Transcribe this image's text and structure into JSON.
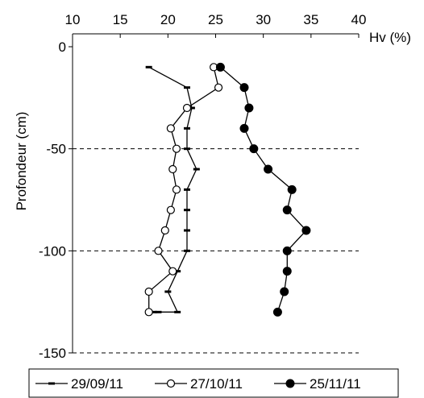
{
  "chart_data": {
    "type": "line",
    "xlabel": "Hv (%)",
    "ylabel": "Profondeur (cm)",
    "x_ticks": [
      "10",
      "15",
      "20",
      "25",
      "30",
      "35",
      "40"
    ],
    "y_ticks": [
      "0",
      "-50",
      "-100",
      "-150"
    ],
    "xlim": [
      10,
      40
    ],
    "ylim": [
      -150,
      0
    ],
    "x_axis_position": "top",
    "grid": "horizontal dashed at -50, -100, -150",
    "legend_position": "bottom",
    "series": [
      {
        "name": "29/09/11",
        "marker": "dash",
        "color": "#000000",
        "x": [
          18.0,
          22.0,
          22.5,
          22.0,
          22.0,
          23.0,
          22.0,
          22.0,
          22.0,
          22.0,
          21.0,
          20.0,
          21.0,
          18.5,
          19.0
        ],
        "y": [
          -10,
          -20,
          -30,
          -40,
          -50,
          -60,
          -70,
          -80,
          -90,
          -100,
          -110,
          -120,
          -130,
          -130,
          -130
        ]
      },
      {
        "name": "27/10/11",
        "marker": "circle-open",
        "color": "#000000",
        "x": [
          24.8,
          25.3,
          22.0,
          20.3,
          20.9,
          20.5,
          20.9,
          20.3,
          19.7,
          19.0,
          20.5,
          18.0,
          18.0
        ],
        "y": [
          -10,
          -20,
          -30,
          -40,
          -50,
          -60,
          -70,
          -80,
          -90,
          -100,
          -110,
          -120,
          -130
        ]
      },
      {
        "name": "25/11/11",
        "marker": "circle-filled",
        "color": "#000000",
        "x": [
          25.5,
          28.0,
          28.5,
          28.0,
          29.0,
          30.5,
          33.0,
          32.5,
          34.5,
          32.5,
          32.5,
          32.2,
          31.5
        ],
        "y": [
          -10,
          -20,
          -30,
          -40,
          -50,
          -60,
          -70,
          -80,
          -90,
          -100,
          -110,
          -120,
          -130
        ]
      }
    ]
  }
}
